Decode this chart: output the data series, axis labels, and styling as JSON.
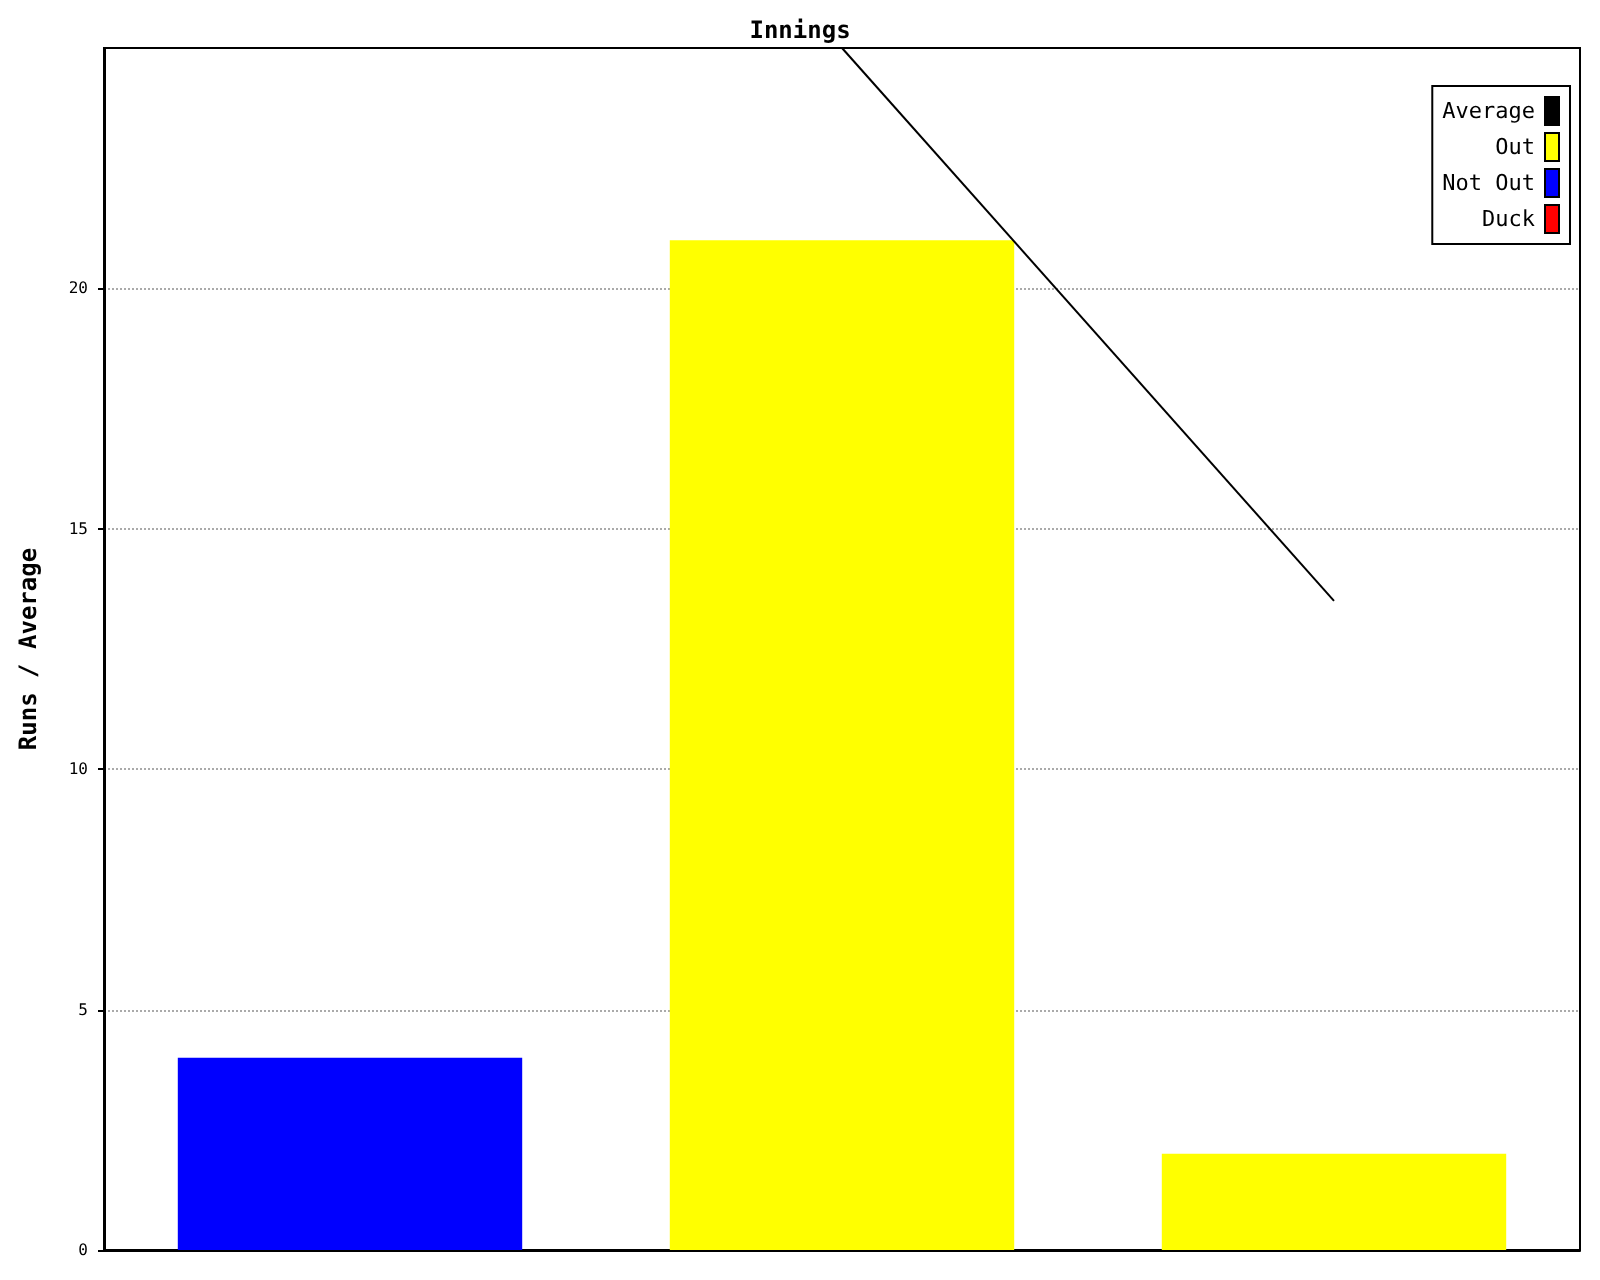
{
  "chart_data": {
    "type": "bar",
    "title": "Innings",
    "ylabel": "Runs / Average",
    "categories": [
      null,
      null,
      null
    ],
    "stacked": true,
    "series": [
      {
        "name": "Average",
        "type": "line",
        "color": "#000000",
        "values": [
          null,
          25,
          13.5
        ]
      },
      {
        "name": "Out",
        "color": "#ffff00",
        "values": [
          null,
          21,
          2
        ]
      },
      {
        "name": "Not Out",
        "color": "#0000ff",
        "values": [
          4,
          null,
          null
        ]
      },
      {
        "name": "Duck",
        "color": "#ff0000",
        "values": [
          null,
          null,
          null
        ]
      }
    ],
    "ylim": [
      0,
      25
    ],
    "yticks": [
      0,
      5,
      10,
      15,
      20
    ],
    "grid": "y",
    "legend": "top right",
    "tick_labels": "y",
    "marker": "none",
    "line_style": "solid"
  }
}
